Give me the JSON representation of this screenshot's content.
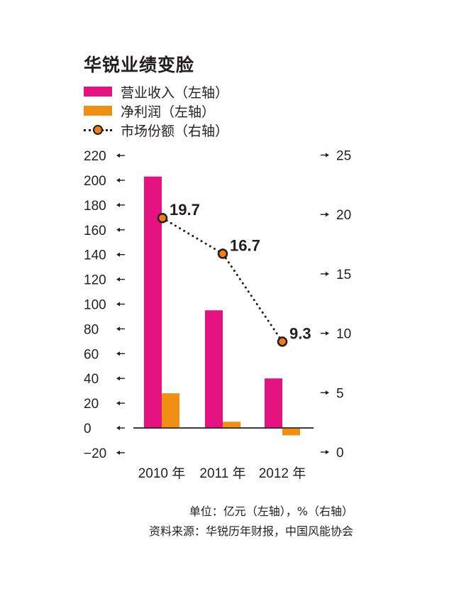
{
  "title": "华锐业绩变脸",
  "legend": [
    {
      "label": "营业收入（左轴）",
      "color": "#e5137f",
      "kind": "bar"
    },
    {
      "label": "净利润（左轴）",
      "color": "#f18e14",
      "kind": "bar"
    },
    {
      "label": "市场份额（右轴）",
      "color": "#ef7d1a",
      "kind": "line"
    }
  ],
  "chart_data": {
    "type": "bar",
    "categories": [
      "2010 年",
      "2011 年",
      "2012 年"
    ],
    "series": [
      {
        "name": "营业收入（左轴）",
        "axis": "left",
        "values": [
          203,
          95,
          40
        ],
        "color": "#e5137f"
      },
      {
        "name": "净利润（左轴）",
        "axis": "left",
        "values": [
          28,
          5,
          -6
        ],
        "color": "#f18e14"
      },
      {
        "name": "市场份额（右轴）",
        "axis": "right",
        "type": "line",
        "values": [
          19.7,
          16.7,
          9.3
        ],
        "labels": [
          "19.7",
          "16.7",
          "9.3"
        ],
        "color": "#ef7d1a"
      }
    ],
    "left_ticks": [
      "220",
      "200",
      "180",
      "160",
      "140",
      "120",
      "100",
      "80",
      "60",
      "40",
      "20",
      "0",
      "−20"
    ],
    "left_tick_values": [
      220,
      200,
      180,
      160,
      140,
      120,
      100,
      80,
      60,
      40,
      20,
      0,
      -20
    ],
    "right_ticks": [
      "25",
      "20",
      "15",
      "10",
      "5",
      "0"
    ],
    "right_tick_values": [
      25,
      20,
      15,
      10,
      5,
      0
    ],
    "left_ylim": [
      -20,
      220
    ],
    "right_ylim": [
      0,
      25
    ],
    "grid": false
  },
  "footer": {
    "unit": "单位：亿元（左轴），%（右轴）",
    "source": "资料来源：华锐历年财报，中国风能协会"
  }
}
